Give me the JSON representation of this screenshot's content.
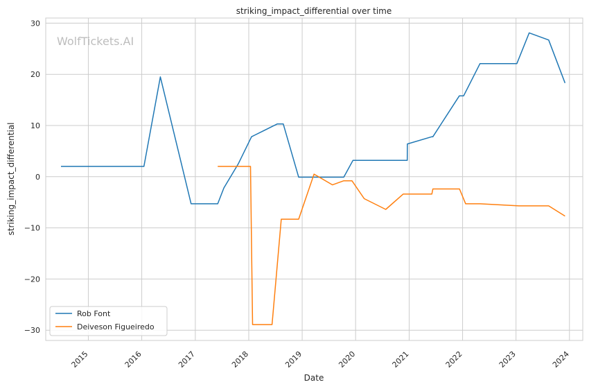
{
  "chart_data": {
    "type": "line",
    "title": "striking_impact_differential over time",
    "xlabel": "Date",
    "ylabel": "striking_impact_differential",
    "watermark": "WolfTickets.AI",
    "x_ticks": [
      "2015",
      "2016",
      "2017",
      "2018",
      "2019",
      "2020",
      "2021",
      "2022",
      "2023",
      "2024"
    ],
    "y_ticks": [
      "−30",
      "−20",
      "−10",
      "0",
      "10",
      "20",
      "30"
    ],
    "xlim": [
      "2014-03-16",
      "2024-04-01"
    ],
    "ylim": [
      -32,
      31
    ],
    "grid": true,
    "legend": "lower-left",
    "series": [
      {
        "name": "Rob Font",
        "color": "#1f77b4",
        "points": [
          [
            "2014-06-28",
            2.0
          ],
          [
            "2016-01-16",
            2.0
          ],
          [
            "2016-05-07",
            19.5
          ],
          [
            "2016-12-03",
            -5.3
          ],
          [
            "2017-06-03",
            -5.3
          ],
          [
            "2017-07-15",
            -2.2
          ],
          [
            "2017-10-21",
            2.5
          ],
          [
            "2018-01-20",
            7.8
          ],
          [
            "2018-02-10",
            8.1
          ],
          [
            "2018-07-14",
            10.3
          ],
          [
            "2018-08-25",
            10.3
          ],
          [
            "2018-12-08",
            -0.1
          ],
          [
            "2019-10-12",
            -0.1
          ],
          [
            "2019-12-14",
            3.2
          ],
          [
            "2020-12-19",
            3.2
          ],
          [
            "2020-12-20",
            6.4
          ],
          [
            "2021-06-05",
            7.8
          ],
          [
            "2021-06-12",
            7.8
          ],
          [
            "2021-12-10",
            15.8
          ],
          [
            "2022-01-08",
            15.8
          ],
          [
            "2022-04-30",
            22.1
          ],
          [
            "2023-01-07",
            22.1
          ],
          [
            "2023-04-01",
            28.1
          ],
          [
            "2023-08-12",
            26.7
          ],
          [
            "2023-12-02",
            18.3
          ]
        ]
      },
      {
        "name": "Deiveson Figueiredo",
        "color": "#ff7f0e",
        "points": [
          [
            "2017-06-03",
            2.0
          ],
          [
            "2018-01-13",
            2.0
          ],
          [
            "2018-01-27",
            -28.9
          ],
          [
            "2018-06-09",
            -28.9
          ],
          [
            "2018-08-11",
            -8.3
          ],
          [
            "2018-12-08",
            -8.3
          ],
          [
            "2019-03-23",
            0.5
          ],
          [
            "2019-07-27",
            -1.6
          ],
          [
            "2019-10-12",
            -0.8
          ],
          [
            "2019-12-07",
            -0.8
          ],
          [
            "2020-02-29",
            -4.3
          ],
          [
            "2020-07-25",
            -6.4
          ],
          [
            "2020-11-21",
            -3.4
          ],
          [
            "2020-12-12",
            -3.4
          ],
          [
            "2021-06-05",
            -3.4
          ],
          [
            "2021-06-12",
            -2.4
          ],
          [
            "2021-12-11",
            -2.4
          ],
          [
            "2022-01-22",
            -5.3
          ],
          [
            "2022-04-30",
            -5.3
          ],
          [
            "2023-01-21",
            -5.7
          ],
          [
            "2023-08-12",
            -5.7
          ],
          [
            "2023-12-02",
            -7.7
          ]
        ]
      }
    ]
  }
}
